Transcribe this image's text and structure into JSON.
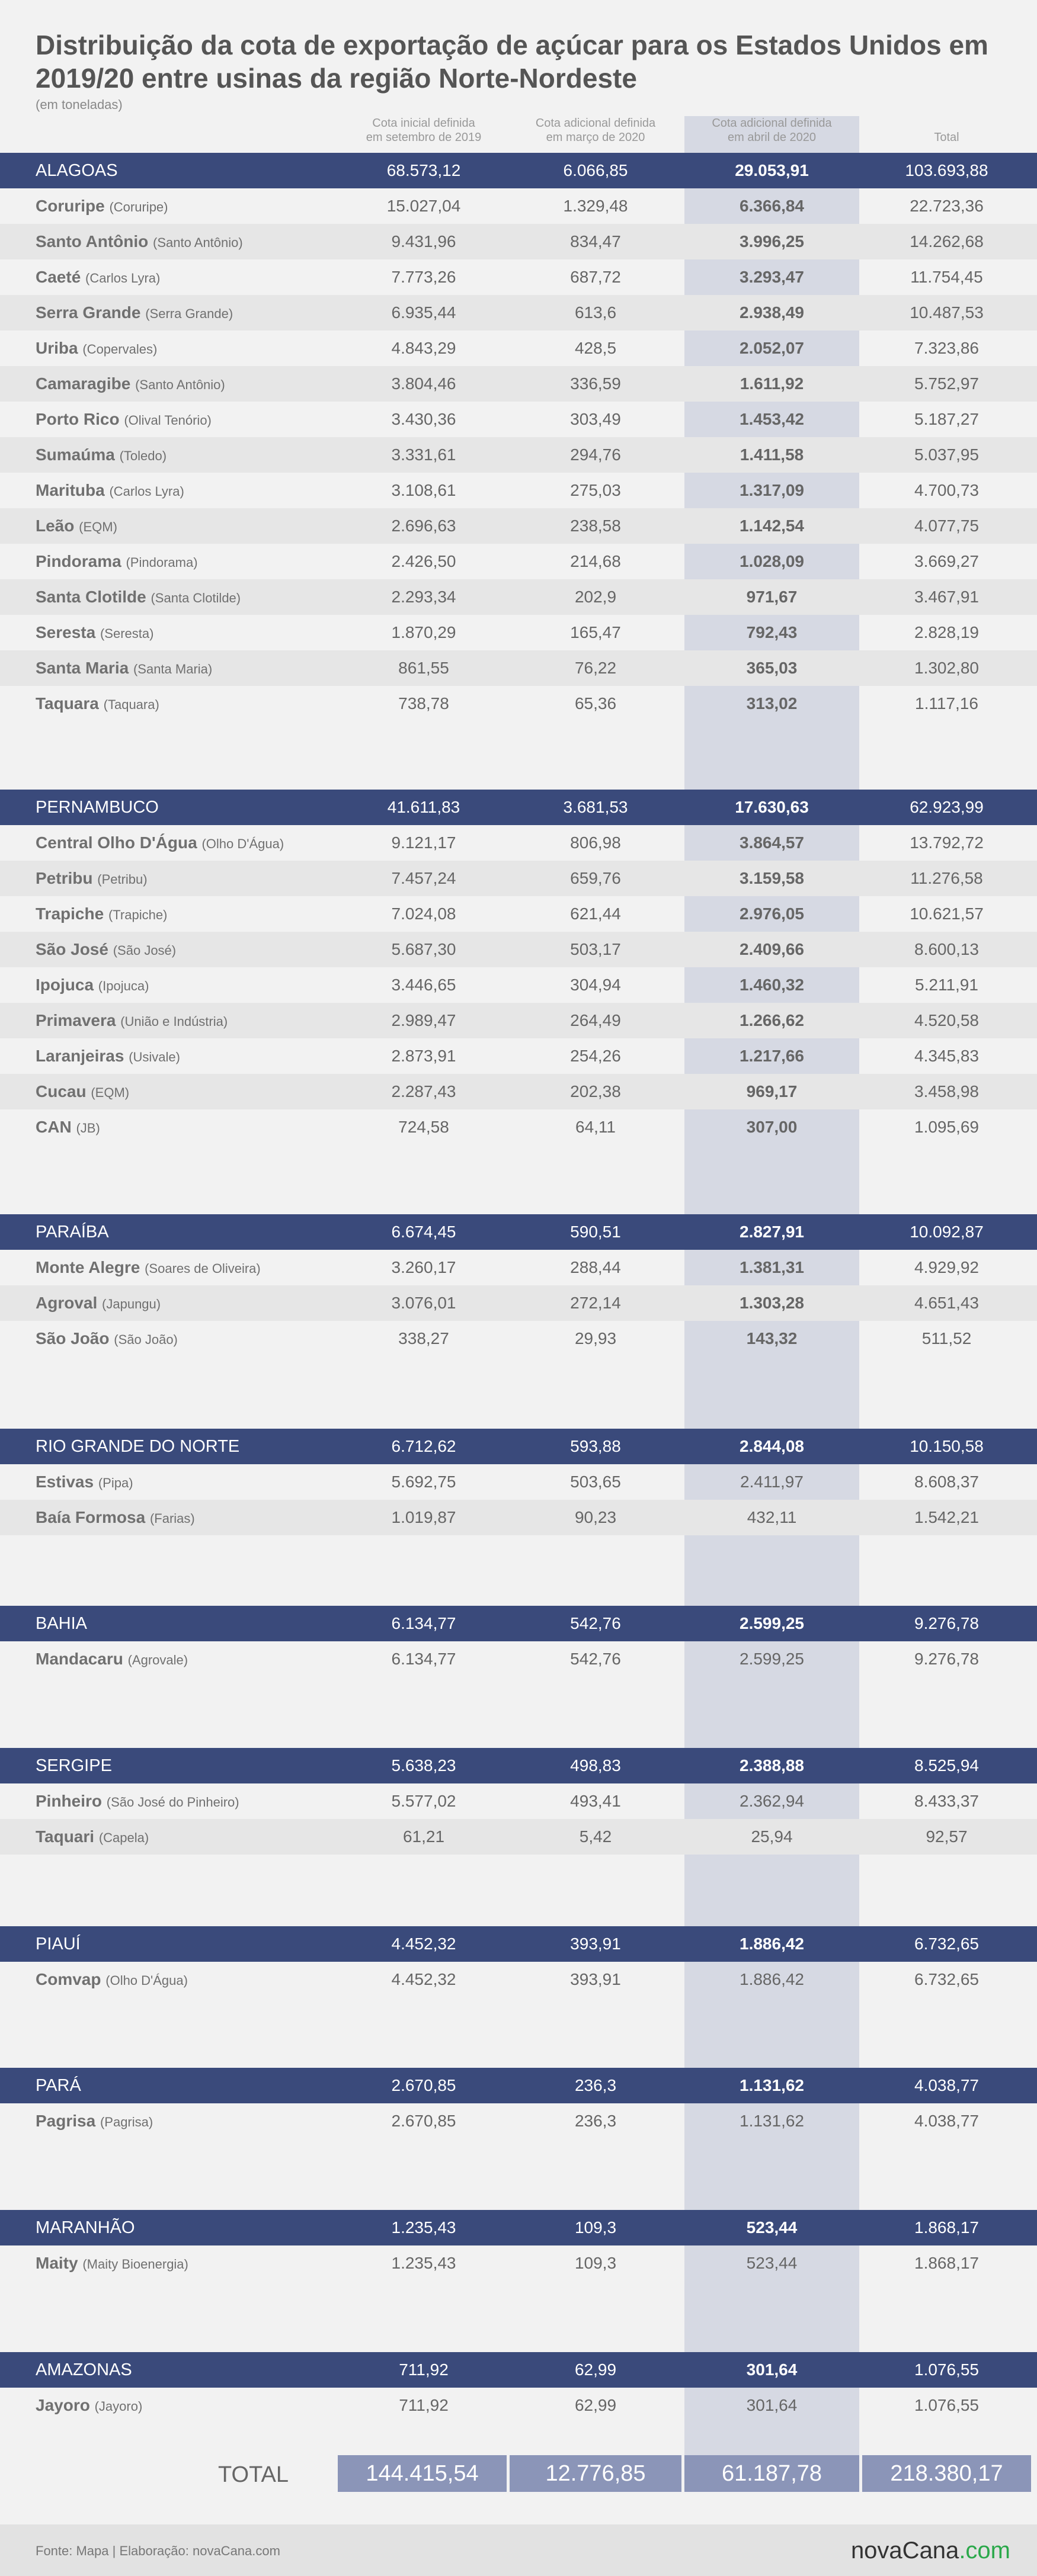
{
  "title": "Distribuição da cota de exportação de açúcar para os Estados Unidos em 2019/20 entre usinas da região Norte-Nordeste",
  "subtitle": "(em toneladas)",
  "columns": [
    "Cota inicial definida\nem setembro de 2019",
    "Cota adicional definida\nem março de 2020",
    "Cota adicional definida\nem abril de 2020",
    "Total"
  ],
  "regions": [
    {
      "name": "ALAGOAS",
      "values": [
        "68.573,12",
        "6.066,85",
        "29.053,91",
        "103.693,88"
      ],
      "mills": [
        {
          "name": "Coruripe",
          "owner": "(Coruripe)",
          "values": [
            "15.027,04",
            "1.329,48",
            "6.366,84",
            "22.723,36"
          ]
        },
        {
          "name": "Santo Antônio",
          "owner": "(Santo Antônio)",
          "values": [
            "9.431,96",
            "834,47",
            "3.996,25",
            "14.262,68"
          ]
        },
        {
          "name": "Caeté",
          "owner": "(Carlos Lyra)",
          "values": [
            "7.773,26",
            "687,72",
            "3.293,47",
            "11.754,45"
          ]
        },
        {
          "name": "Serra Grande",
          "owner": "(Serra Grande)",
          "values": [
            "6.935,44",
            "613,6",
            "2.938,49",
            "10.487,53"
          ]
        },
        {
          "name": "Uriba",
          "owner": "(Copervales)",
          "values": [
            "4.843,29",
            "428,5",
            "2.052,07",
            "7.323,86"
          ]
        },
        {
          "name": "Camaragibe",
          "owner": "(Santo Antônio)",
          "values": [
            "3.804,46",
            "336,59",
            "1.611,92",
            "5.752,97"
          ]
        },
        {
          "name": "Porto Rico",
          "owner": "(Olival Tenório)",
          "values": [
            "3.430,36",
            "303,49",
            "1.453,42",
            "5.187,27"
          ]
        },
        {
          "name": "Sumaúma",
          "owner": "(Toledo)",
          "values": [
            "3.331,61",
            "294,76",
            "1.411,58",
            "5.037,95"
          ]
        },
        {
          "name": "Marituba",
          "owner": "(Carlos Lyra)",
          "values": [
            "3.108,61",
            "275,03",
            "1.317,09",
            "4.700,73"
          ]
        },
        {
          "name": "Leão",
          "owner": "(EQM)",
          "values": [
            "2.696,63",
            "238,58",
            "1.142,54",
            "4.077,75"
          ]
        },
        {
          "name": "Pindorama",
          "owner": "(Pindorama)",
          "values": [
            "2.426,50",
            "214,68",
            "1.028,09",
            "3.669,27"
          ]
        },
        {
          "name": "Santa Clotilde",
          "owner": "(Santa Clotilde)",
          "values": [
            "2.293,34",
            "202,9",
            "971,67",
            "3.467,91"
          ]
        },
        {
          "name": "Seresta",
          "owner": "(Seresta)",
          "values": [
            "1.870,29",
            "165,47",
            "792,43",
            "2.828,19"
          ]
        },
        {
          "name": "Santa Maria",
          "owner": "(Santa Maria)",
          "values": [
            "861,55",
            "76,22",
            "365,03",
            "1.302,80"
          ]
        },
        {
          "name": "Taquara",
          "owner": "(Taquara)",
          "values": [
            "738,78",
            "65,36",
            "313,02",
            "1.117,16"
          ]
        }
      ]
    },
    {
      "name": "PERNAMBUCO",
      "values": [
        "41.611,83",
        "3.681,53",
        "17.630,63",
        "62.923,99"
      ],
      "mills": [
        {
          "name": "Central Olho D'Água",
          "owner": "(Olho D'Água)",
          "values": [
            "9.121,17",
            "806,98",
            "3.864,57",
            "13.792,72"
          ]
        },
        {
          "name": "Petribu",
          "owner": "(Petribu)",
          "values": [
            "7.457,24",
            "659,76",
            "3.159,58",
            "11.276,58"
          ]
        },
        {
          "name": "Trapiche",
          "owner": "(Trapiche)",
          "values": [
            "7.024,08",
            "621,44",
            "2.976,05",
            "10.621,57"
          ]
        },
        {
          "name": "São José",
          "owner": "(São José)",
          "values": [
            "5.687,30",
            "503,17",
            "2.409,66",
            "8.600,13"
          ]
        },
        {
          "name": "Ipojuca",
          "owner": "(Ipojuca)",
          "values": [
            "3.446,65",
            "304,94",
            "1.460,32",
            "5.211,91"
          ]
        },
        {
          "name": "Primavera",
          "owner": "(União e Indústria)",
          "values": [
            "2.989,47",
            "264,49",
            "1.266,62",
            "4.520,58"
          ]
        },
        {
          "name": "Laranjeiras",
          "owner": "(Usivale)",
          "values": [
            "2.873,91",
            "254,26",
            "1.217,66",
            "4.345,83"
          ]
        },
        {
          "name": "Cucau",
          "owner": "(EQM)",
          "values": [
            "2.287,43",
            "202,38",
            "969,17",
            "3.458,98"
          ]
        },
        {
          "name": "CAN",
          "owner": "(JB)",
          "values": [
            "724,58",
            "64,11",
            "307,00",
            "1.095,69"
          ]
        }
      ]
    },
    {
      "name": "PARAÍBA",
      "values": [
        "6.674,45",
        "590,51",
        "2.827,91",
        "10.092,87"
      ],
      "mills": [
        {
          "name": "Monte Alegre",
          "owner": "(Soares de Oliveira)",
          "values": [
            "3.260,17",
            "288,44",
            "1.381,31",
            "4.929,92"
          ]
        },
        {
          "name": "Agroval",
          "owner": "(Japungu)",
          "values": [
            "3.076,01",
            "272,14",
            "1.303,28",
            "4.651,43"
          ]
        },
        {
          "name": "São João",
          "owner": "(São João)",
          "values": [
            "338,27",
            "29,93",
            "143,32",
            "511,52"
          ]
        }
      ]
    },
    {
      "name": "RIO GRANDE DO NORTE",
      "values": [
        "6.712,62",
        "593,88",
        "2.844,08",
        "10.150,58"
      ],
      "mills": [
        {
          "name": "Estivas",
          "owner": "(Pipa)",
          "values": [
            "5.692,75",
            "503,65",
            "2.411,97",
            "8.608,37"
          ]
        },
        {
          "name": "Baía Formosa",
          "owner": "(Farias)",
          "values": [
            "1.019,87",
            "90,23",
            "432,11",
            "1.542,21"
          ]
        }
      ]
    },
    {
      "name": "BAHIA",
      "values": [
        "6.134,77",
        "542,76",
        "2.599,25",
        "9.276,78"
      ],
      "mills": [
        {
          "name": "Mandacaru",
          "owner": "(Agrovale)",
          "values": [
            "6.134,77",
            "542,76",
            "2.599,25",
            "9.276,78"
          ]
        }
      ]
    },
    {
      "name": "SERGIPE",
      "values": [
        "5.638,23",
        "498,83",
        "2.388,88",
        "8.525,94"
      ],
      "mills": [
        {
          "name": "Pinheiro",
          "owner": "(São José do Pinheiro)",
          "values": [
            "5.577,02",
            "493,41",
            "2.362,94",
            "8.433,37"
          ]
        },
        {
          "name": "Taquari",
          "owner": "(Capela)",
          "values": [
            "61,21",
            "5,42",
            "25,94",
            "92,57"
          ]
        }
      ]
    },
    {
      "name": "PIAUÍ",
      "values": [
        "4.452,32",
        "393,91",
        "1.886,42",
        "6.732,65"
      ],
      "mills": [
        {
          "name": "Comvap",
          "owner": "(Olho D'Água)",
          "values": [
            "4.452,32",
            "393,91",
            "1.886,42",
            "6.732,65"
          ]
        }
      ]
    },
    {
      "name": "PARÁ",
      "values": [
        "2.670,85",
        "236,3",
        "1.131,62",
        "4.038,77"
      ],
      "mills": [
        {
          "name": "Pagrisa",
          "owner": "(Pagrisa)",
          "values": [
            "2.670,85",
            "236,3",
            "1.131,62",
            "4.038,77"
          ]
        }
      ]
    },
    {
      "name": "MARANHÃO",
      "values": [
        "1.235,43",
        "109,3",
        "523,44",
        "1.868,17"
      ],
      "mills": [
        {
          "name": "Maity",
          "owner": "(Maity Bioenergia)",
          "values": [
            "1.235,43",
            "109,3",
            "523,44",
            "1.868,17"
          ]
        }
      ]
    },
    {
      "name": "AMAZONAS",
      "values": [
        "711,92",
        "62,99",
        "301,64",
        "1.076,55"
      ],
      "mills": [
        {
          "name": "Jayoro",
          "owner": "(Jayoro)",
          "values": [
            "711,92",
            "62,99",
            "301,64",
            "1.076,55"
          ]
        }
      ]
    }
  ],
  "total": {
    "label": "TOTAL",
    "values": [
      "144.415,54",
      "12.776,85",
      "61.187,78",
      "218.380,17"
    ]
  },
  "footer": {
    "source": "Fonte: Mapa | Elaboração: novaCana.com",
    "logo_main": "novaCana",
    "logo_suffix": ".com"
  }
}
